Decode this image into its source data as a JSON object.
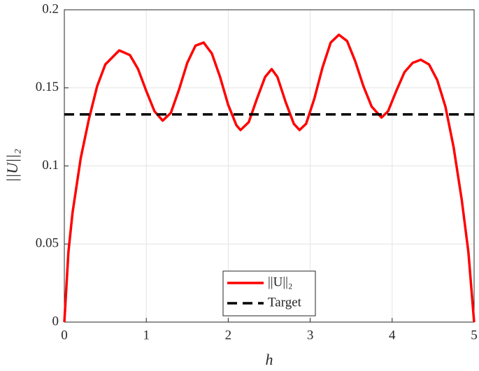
{
  "chart_data": {
    "type": "line",
    "xlabel": "h",
    "ylabel": "||U||₂",
    "xlim": [
      0,
      5
    ],
    "ylim": [
      0,
      0.2
    ],
    "xticks": [
      0,
      1,
      2,
      3,
      4,
      5
    ],
    "yticks": [
      0,
      0.05,
      0.1,
      0.15,
      0.2
    ],
    "grid": true,
    "legend_position": "south",
    "series": [
      {
        "name": "||U||₂",
        "color": "#ff0000",
        "style": "solid",
        "x": [
          0,
          0.05,
          0.1,
          0.2,
          0.3,
          0.4,
          0.5,
          0.67,
          0.8,
          0.9,
          1.0,
          1.1,
          1.2,
          1.3,
          1.4,
          1.5,
          1.6,
          1.7,
          1.8,
          1.9,
          2.0,
          2.1,
          2.15,
          2.25,
          2.35,
          2.45,
          2.53,
          2.6,
          2.7,
          2.8,
          2.87,
          2.95,
          3.05,
          3.15,
          3.25,
          3.35,
          3.45,
          3.55,
          3.65,
          3.75,
          3.87,
          3.95,
          4.05,
          4.15,
          4.25,
          4.35,
          4.45,
          4.55,
          4.65,
          4.75,
          4.85,
          4.93,
          5.0
        ],
        "values": [
          0,
          0.045,
          0.07,
          0.105,
          0.13,
          0.151,
          0.165,
          0.174,
          0.171,
          0.162,
          0.148,
          0.135,
          0.129,
          0.134,
          0.149,
          0.166,
          0.177,
          0.179,
          0.172,
          0.157,
          0.139,
          0.126,
          0.123,
          0.128,
          0.143,
          0.157,
          0.162,
          0.157,
          0.141,
          0.127,
          0.123,
          0.127,
          0.143,
          0.163,
          0.179,
          0.184,
          0.18,
          0.167,
          0.151,
          0.138,
          0.131,
          0.135,
          0.148,
          0.16,
          0.166,
          0.168,
          0.165,
          0.155,
          0.138,
          0.112,
          0.078,
          0.045,
          0
        ]
      },
      {
        "name": "Target",
        "color": "#000000",
        "style": "dashed",
        "x": [
          0,
          5
        ],
        "values": [
          0.133,
          0.133
        ]
      }
    ]
  }
}
